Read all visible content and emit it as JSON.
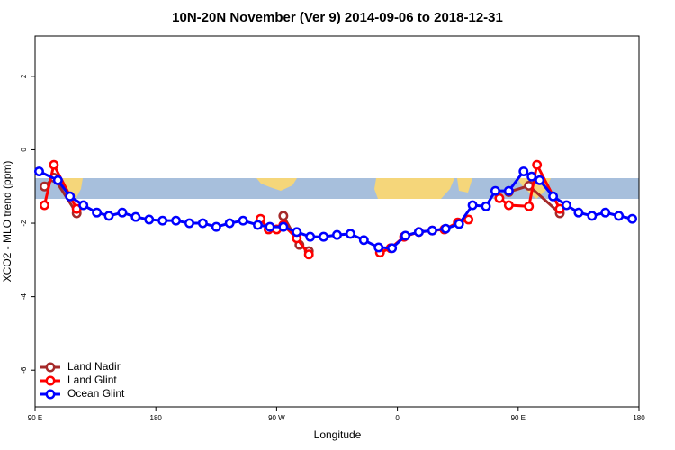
{
  "chart_data": {
    "type": "line",
    "title": "10N-20N November (Ver 9)   2014-09-06 to 2018-12-31",
    "xlabel": "Longitude",
    "ylabel": "XCO2 - MLO trend (ppm)",
    "xlim": [
      90,
      540
    ],
    "ylim": [
      -7,
      3.1
    ],
    "xticks": [
      {
        "value": 90,
        "label": "90 E"
      },
      180,
      {
        "value": 270,
        "label": "90 W"
      },
      {
        "value": 360,
        "label": "0"
      },
      {
        "value": 450,
        "label": "90 E"
      },
      {
        "value": 540,
        "label": "180"
      }
    ],
    "yticks": [
      -6,
      -4,
      -2,
      0,
      2
    ],
    "legend": "bottom-left",
    "series": [
      {
        "name": "Land Nadir",
        "color": "#a52a2a",
        "x": [
          97,
          104,
          121,
          null,
          275,
          287,
          294,
          null,
          443,
          458,
          481
        ],
        "values": [
          -1.0,
          -0.76,
          -1.73,
          null,
          -1.8,
          -2.59,
          -2.76,
          null,
          -1.15,
          -0.98,
          -1.73
        ]
      },
      {
        "name": "Land Glint",
        "color": "#ff0000",
        "x": [
          97,
          104,
          121,
          null,
          258,
          264,
          270,
          275,
          285,
          294,
          null,
          347,
          355,
          365,
          376,
          386,
          395,
          405,
          413,
          null,
          436,
          443,
          458,
          464,
          481
        ],
        "values": [
          -1.51,
          -0.41,
          -1.61,
          null,
          -1.88,
          -2.17,
          -2.17,
          -2.05,
          -2.41,
          -2.85,
          null,
          -2.8,
          -2.68,
          -2.37,
          -2.24,
          -2.2,
          -2.17,
          -1.98,
          -1.9,
          null,
          -1.32,
          -1.51,
          -1.54,
          -0.41,
          -1.61
        ]
      },
      {
        "name": "Ocean Glint",
        "color": "#0000ff",
        "x": [
          93,
          107,
          116,
          126,
          136,
          145,
          155,
          165,
          175,
          185,
          195,
          205,
          215,
          225,
          235,
          245,
          256,
          265,
          275,
          285,
          295,
          305,
          315,
          325,
          335,
          346,
          356,
          366,
          376,
          386,
          396,
          406,
          416,
          426,
          433,
          443,
          454,
          460,
          466,
          476,
          486,
          495,
          505,
          515,
          525,
          535
        ],
        "values": [
          -0.59,
          -0.83,
          -1.27,
          -1.51,
          -1.71,
          -1.8,
          -1.71,
          -1.83,
          -1.9,
          -1.93,
          -1.93,
          -2.0,
          -2.0,
          -2.1,
          -2.0,
          -1.93,
          -2.05,
          -2.1,
          -2.1,
          -2.24,
          -2.37,
          -2.37,
          -2.32,
          -2.29,
          -2.46,
          -2.66,
          -2.68,
          -2.34,
          -2.24,
          -2.2,
          -2.15,
          -2.02,
          -1.51,
          -1.54,
          -1.12,
          -1.12,
          -0.59,
          -0.73,
          -0.83,
          -1.27,
          -1.51,
          -1.71,
          -1.8,
          -1.71,
          -1.8,
          -1.88
        ]
      }
    ]
  }
}
